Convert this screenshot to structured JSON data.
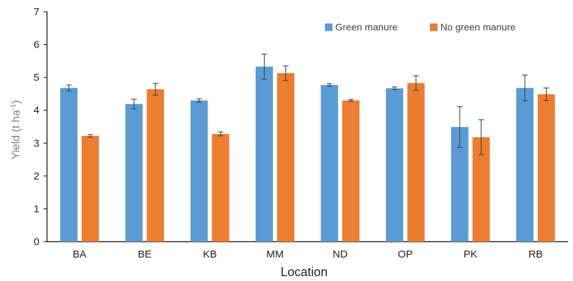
{
  "chart_data": {
    "type": "bar",
    "xlabel": "Location",
    "ylabel_main": "Yield (t ha",
    "ylabel_sup": "-1",
    "ylabel_close": ")",
    "ylim": [
      0,
      7
    ],
    "yticks": [
      0,
      1,
      2,
      3,
      4,
      5,
      6,
      7
    ],
    "categories": [
      "BA",
      "BE",
      "KB",
      "MM",
      "ND",
      "OP",
      "PK",
      "RB"
    ],
    "legend_position": "top-right",
    "series": [
      {
        "name": "Green manure",
        "color": "#5b9bd5",
        "values": [
          4.68,
          4.19,
          4.3,
          5.33,
          4.77,
          4.67,
          3.49,
          4.68
        ],
        "errors": [
          0.09,
          0.15,
          0.05,
          0.38,
          0.04,
          0.04,
          0.62,
          0.39
        ]
      },
      {
        "name": "No green manure",
        "color": "#ed7d31",
        "values": [
          3.22,
          4.64,
          3.28,
          5.13,
          4.3,
          4.83,
          3.18,
          4.49
        ],
        "errors": [
          0.04,
          0.18,
          0.06,
          0.22,
          0.03,
          0.22,
          0.53,
          0.19
        ]
      }
    ]
  }
}
